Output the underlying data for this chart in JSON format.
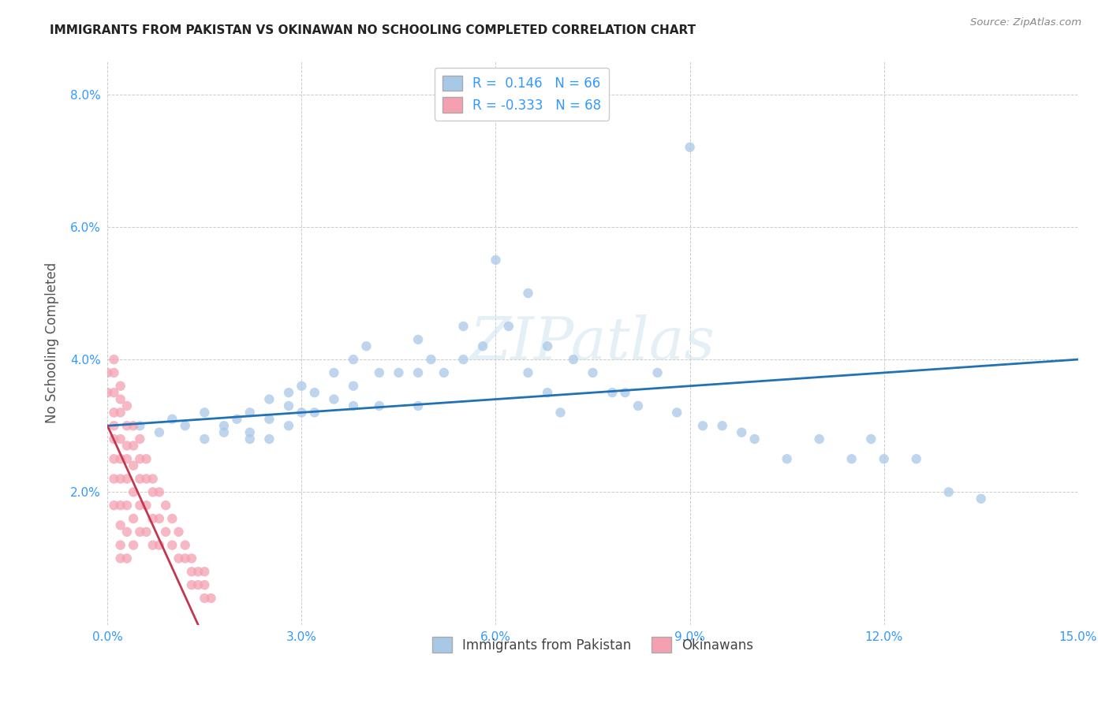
{
  "title": "IMMIGRANTS FROM PAKISTAN VS OKINAWAN NO SCHOOLING COMPLETED CORRELATION CHART",
  "source": "Source: ZipAtlas.com",
  "ylabel": "No Schooling Completed",
  "legend_labels": [
    "Immigrants from Pakistan",
    "Okinawans"
  ],
  "legend_R": [
    0.146,
    -0.333
  ],
  "legend_N": [
    66,
    68
  ],
  "xlim": [
    0.0,
    0.15
  ],
  "ylim": [
    0.0,
    0.085
  ],
  "xtick_vals": [
    0.0,
    0.03,
    0.06,
    0.09,
    0.12,
    0.15
  ],
  "ytick_vals": [
    0.0,
    0.02,
    0.04,
    0.06,
    0.08
  ],
  "xtick_labels": [
    "0.0%",
    "3.0%",
    "6.0%",
    "9.0%",
    "12.0%",
    "15.0%"
  ],
  "ytick_labels": [
    "",
    "2.0%",
    "4.0%",
    "6.0%",
    "8.0%"
  ],
  "color_blue": "#a8c8e8",
  "color_pink": "#f4a0b0",
  "color_blue_line": "#2171b5",
  "color_pink_line": "#c2374f",
  "watermark": "ZIPatlas",
  "blue_x": [
    0.005,
    0.008,
    0.01,
    0.012,
    0.015,
    0.015,
    0.018,
    0.018,
    0.02,
    0.022,
    0.022,
    0.022,
    0.025,
    0.025,
    0.025,
    0.028,
    0.028,
    0.028,
    0.03,
    0.03,
    0.032,
    0.032,
    0.035,
    0.035,
    0.038,
    0.038,
    0.038,
    0.04,
    0.042,
    0.042,
    0.045,
    0.048,
    0.048,
    0.048,
    0.05,
    0.052,
    0.055,
    0.055,
    0.058,
    0.06,
    0.062,
    0.065,
    0.065,
    0.068,
    0.068,
    0.07,
    0.072,
    0.075,
    0.078,
    0.08,
    0.082,
    0.085,
    0.088,
    0.09,
    0.092,
    0.095,
    0.098,
    0.1,
    0.105,
    0.11,
    0.115,
    0.118,
    0.12,
    0.125,
    0.13,
    0.135
  ],
  "blue_y": [
    0.03,
    0.029,
    0.031,
    0.03,
    0.032,
    0.028,
    0.03,
    0.029,
    0.031,
    0.032,
    0.029,
    0.028,
    0.034,
    0.031,
    0.028,
    0.035,
    0.033,
    0.03,
    0.036,
    0.032,
    0.035,
    0.032,
    0.038,
    0.034,
    0.04,
    0.036,
    0.033,
    0.042,
    0.038,
    0.033,
    0.038,
    0.043,
    0.038,
    0.033,
    0.04,
    0.038,
    0.045,
    0.04,
    0.042,
    0.055,
    0.045,
    0.05,
    0.038,
    0.042,
    0.035,
    0.032,
    0.04,
    0.038,
    0.035,
    0.035,
    0.033,
    0.038,
    0.032,
    0.072,
    0.03,
    0.03,
    0.029,
    0.028,
    0.025,
    0.028,
    0.025,
    0.028,
    0.025,
    0.025,
    0.02,
    0.019
  ],
  "pink_x": [
    0.0,
    0.0,
    0.001,
    0.001,
    0.001,
    0.001,
    0.001,
    0.001,
    0.001,
    0.001,
    0.001,
    0.002,
    0.002,
    0.002,
    0.002,
    0.002,
    0.002,
    0.002,
    0.002,
    0.002,
    0.002,
    0.003,
    0.003,
    0.003,
    0.003,
    0.003,
    0.003,
    0.003,
    0.003,
    0.004,
    0.004,
    0.004,
    0.004,
    0.004,
    0.004,
    0.005,
    0.005,
    0.005,
    0.005,
    0.005,
    0.006,
    0.006,
    0.006,
    0.006,
    0.007,
    0.007,
    0.007,
    0.007,
    0.008,
    0.008,
    0.008,
    0.009,
    0.009,
    0.01,
    0.01,
    0.011,
    0.011,
    0.012,
    0.012,
    0.013,
    0.013,
    0.013,
    0.014,
    0.014,
    0.015,
    0.015,
    0.015,
    0.016
  ],
  "pink_y": [
    0.038,
    0.035,
    0.04,
    0.038,
    0.035,
    0.032,
    0.03,
    0.028,
    0.025,
    0.022,
    0.018,
    0.036,
    0.034,
    0.032,
    0.028,
    0.025,
    0.022,
    0.018,
    0.015,
    0.012,
    0.01,
    0.033,
    0.03,
    0.027,
    0.025,
    0.022,
    0.018,
    0.014,
    0.01,
    0.03,
    0.027,
    0.024,
    0.02,
    0.016,
    0.012,
    0.028,
    0.025,
    0.022,
    0.018,
    0.014,
    0.025,
    0.022,
    0.018,
    0.014,
    0.022,
    0.02,
    0.016,
    0.012,
    0.02,
    0.016,
    0.012,
    0.018,
    0.014,
    0.016,
    0.012,
    0.014,
    0.01,
    0.012,
    0.01,
    0.01,
    0.008,
    0.006,
    0.008,
    0.006,
    0.008,
    0.006,
    0.004,
    0.004
  ],
  "blue_line_x": [
    0.0,
    0.15
  ],
  "blue_line_y": [
    0.03,
    0.04
  ],
  "pink_line_x": [
    0.0,
    0.014
  ],
  "pink_line_y": [
    0.03,
    0.0
  ]
}
